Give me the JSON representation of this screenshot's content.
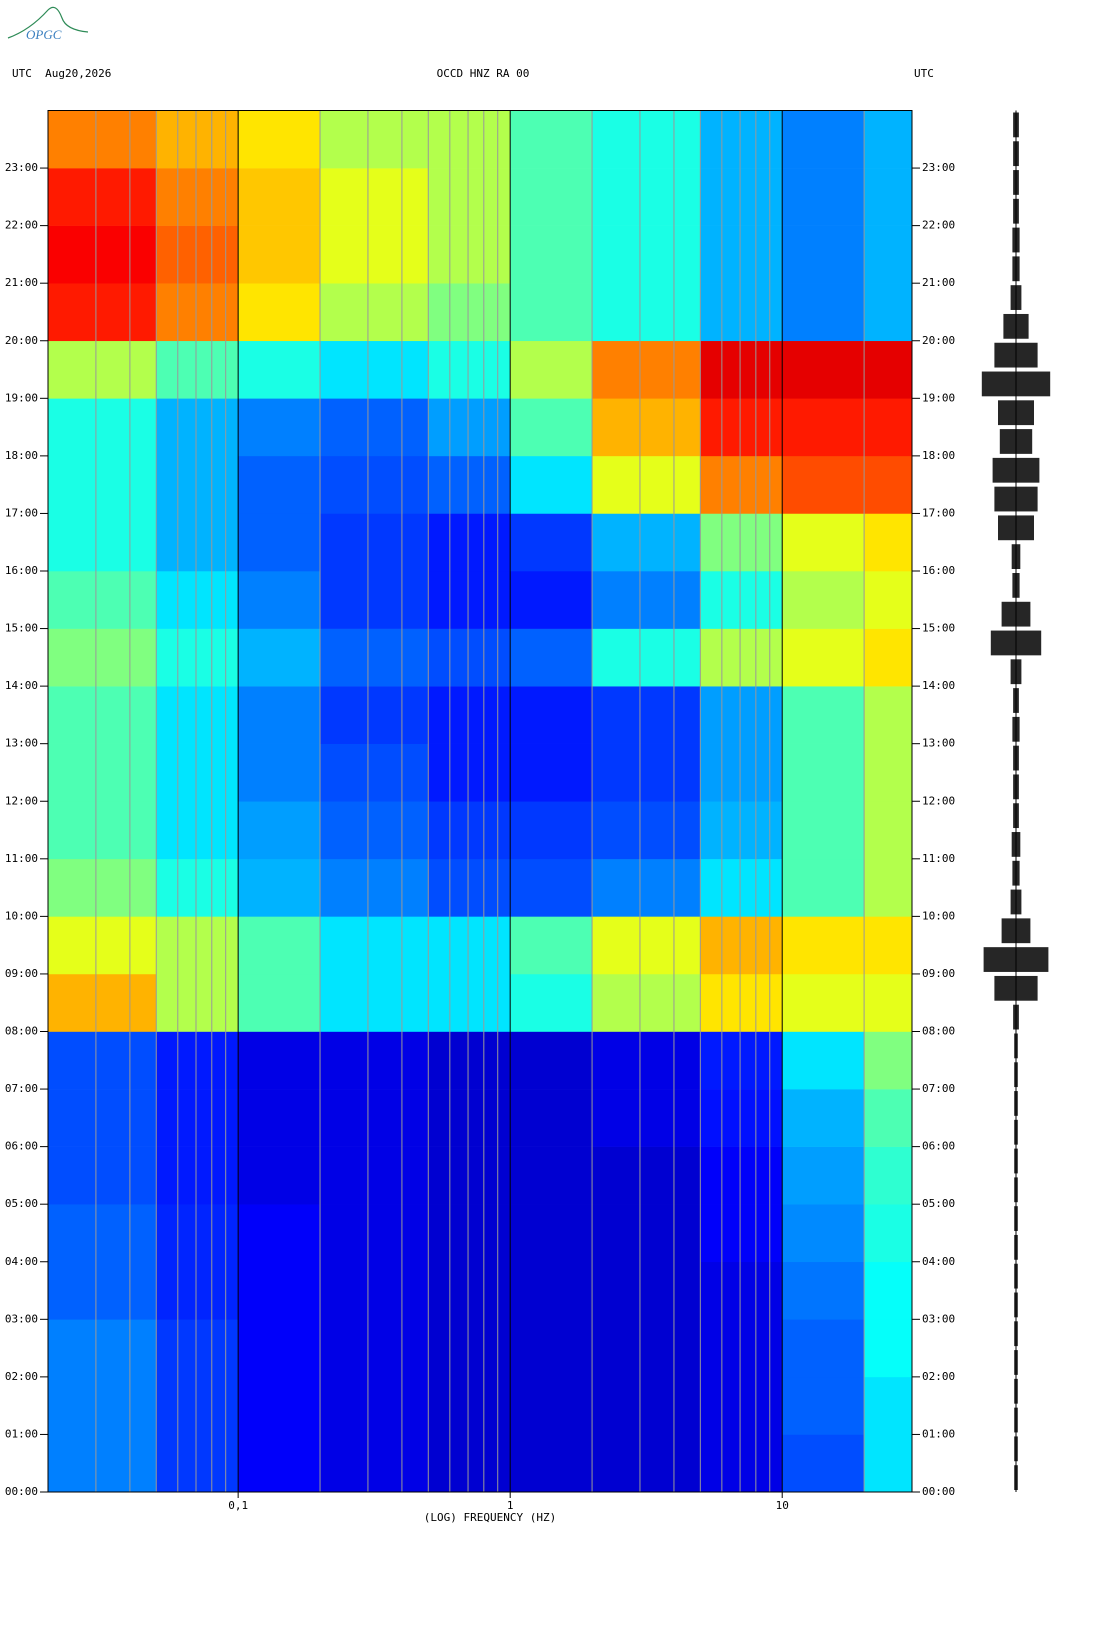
{
  "logo": "OPGC",
  "chart_data": {
    "type": "spectrogram",
    "title": "OCCD HNZ RA 00",
    "left_header": "UTC  Aug20,2026",
    "right_header": "UTC",
    "x_label": "(LOG) FREQUENCY (HZ)",
    "xscale": "log",
    "colormap": "jet",
    "xlim": [
      0.02,
      30
    ],
    "xticks": [
      {
        "value": 0.1,
        "label": "0,1"
      },
      1,
      10
    ],
    "xminor": [
      0.02,
      0.03,
      0.04,
      0.05,
      0.06,
      0.07,
      0.08,
      0.09,
      0.2,
      0.3,
      0.4,
      0.5,
      0.6,
      0.7,
      0.8,
      0.9,
      2,
      3,
      4,
      5,
      6,
      7,
      8,
      9,
      20,
      30
    ],
    "ylim": [
      0,
      24
    ],
    "yticks": [
      {
        "value": 0,
        "label": "00:00"
      },
      {
        "value": 1,
        "label": "01:00"
      },
      {
        "value": 2,
        "label": "02:00"
      },
      {
        "value": 3,
        "label": "03:00"
      },
      {
        "value": 4,
        "label": "04:00"
      },
      {
        "value": 5,
        "label": "05:00"
      },
      {
        "value": 6,
        "label": "06:00"
      },
      {
        "value": 7,
        "label": "07:00"
      },
      {
        "value": 8,
        "label": "08:00"
      },
      {
        "value": 9,
        "label": "09:00"
      },
      {
        "value": 10,
        "label": "10:00"
      },
      {
        "value": 11,
        "label": "11:00"
      },
      {
        "value": 12,
        "label": "12:00"
      },
      {
        "value": 13,
        "label": "13:00"
      },
      {
        "value": 14,
        "label": "14:00"
      },
      {
        "value": 15,
        "label": "15:00"
      },
      {
        "value": 16,
        "label": "16:00"
      },
      {
        "value": 17,
        "label": "17:00"
      },
      {
        "value": 18,
        "label": "18:00"
      },
      {
        "value": 19,
        "label": "19:00"
      },
      {
        "value": 20,
        "label": "20:00"
      },
      {
        "value": 21,
        "label": "21:00"
      },
      {
        "value": 22,
        "label": "22:00"
      },
      {
        "value": 23,
        "label": "23:00"
      }
    ],
    "freq_edges": [
      0.02,
      0.05,
      0.1,
      0.2,
      0.5,
      1,
      2,
      5,
      10,
      20,
      30
    ],
    "z": [
      [
        25,
        18,
        12,
        10,
        8,
        8,
        8,
        10,
        20,
        35
      ],
      [
        25,
        18,
        12,
        10,
        8,
        8,
        8,
        10,
        22,
        35
      ],
      [
        25,
        18,
        12,
        10,
        8,
        8,
        8,
        10,
        22,
        38
      ],
      [
        22,
        16,
        12,
        10,
        8,
        8,
        8,
        10,
        24,
        38
      ],
      [
        22,
        16,
        12,
        10,
        8,
        8,
        8,
        12,
        26,
        40
      ],
      [
        20,
        15,
        10,
        10,
        8,
        8,
        8,
        12,
        28,
        42
      ],
      [
        20,
        15,
        10,
        10,
        8,
        8,
        10,
        14,
        30,
        45
      ],
      [
        20,
        15,
        10,
        10,
        8,
        8,
        10,
        15,
        35,
        50
      ],
      [
        70,
        55,
        45,
        35,
        35,
        40,
        55,
        65,
        60,
        60
      ],
      [
        60,
        55,
        45,
        35,
        35,
        45,
        60,
        70,
        65,
        65
      ],
      [
        50,
        40,
        30,
        25,
        20,
        20,
        25,
        35,
        45,
        55
      ],
      [
        45,
        35,
        28,
        22,
        18,
        18,
        20,
        30,
        45,
        55
      ],
      [
        45,
        35,
        25,
        20,
        15,
        15,
        18,
        28,
        45,
        55
      ],
      [
        45,
        35,
        25,
        18,
        15,
        15,
        18,
        28,
        45,
        55
      ],
      [
        50,
        40,
        30,
        22,
        20,
        22,
        40,
        55,
        60,
        65
      ],
      [
        45,
        35,
        25,
        18,
        15,
        15,
        25,
        40,
        55,
        60
      ],
      [
        40,
        30,
        22,
        18,
        15,
        18,
        30,
        50,
        60,
        65
      ],
      [
        40,
        30,
        22,
        20,
        22,
        35,
        60,
        75,
        80,
        80
      ],
      [
        40,
        30,
        25,
        22,
        28,
        45,
        70,
        85,
        85,
        85
      ],
      [
        55,
        45,
        40,
        35,
        40,
        55,
        75,
        90,
        90,
        90
      ],
      [
        85,
        75,
        65,
        55,
        50,
        45,
        40,
        30,
        25,
        30
      ],
      [
        88,
        78,
        68,
        60,
        55,
        45,
        40,
        30,
        25,
        30
      ],
      [
        85,
        75,
        68,
        60,
        55,
        45,
        40,
        30,
        25,
        30
      ],
      [
        75,
        70,
        65,
        55,
        55,
        45,
        40,
        30,
        25,
        30
      ]
    ],
    "trace": [
      5,
      5,
      5,
      5,
      5,
      5,
      5,
      5,
      5,
      5,
      5,
      5,
      5,
      5,
      5,
      5,
      8,
      60,
      90,
      40,
      15,
      10,
      12,
      8,
      8,
      8,
      10,
      8,
      15,
      70,
      40,
      10,
      12,
      50,
      60,
      65,
      45,
      50,
      95,
      60,
      35,
      15,
      10,
      10,
      8,
      8,
      8,
      8
    ]
  }
}
